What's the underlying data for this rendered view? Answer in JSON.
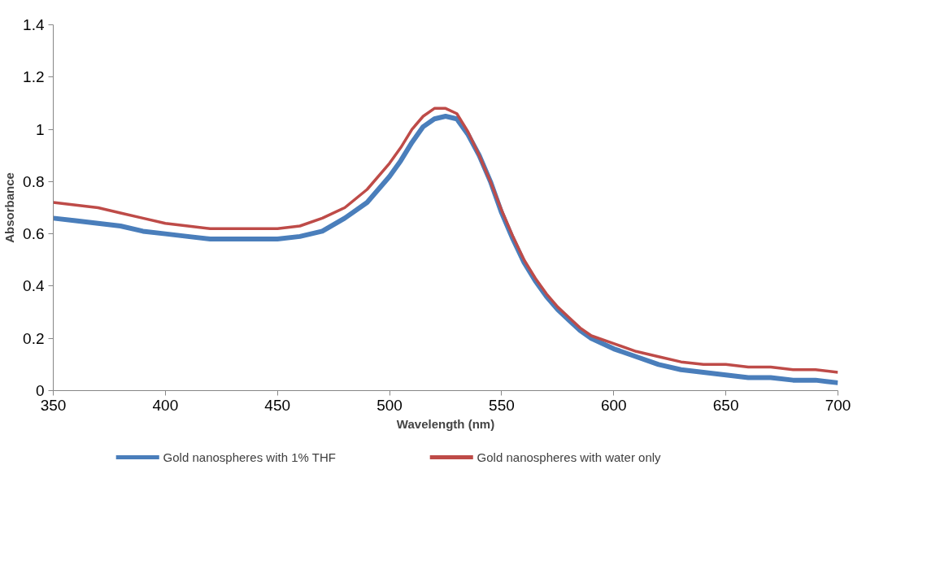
{
  "chart_data": {
    "type": "line",
    "xlabel": "Wavelength (nm)",
    "ylabel": "Absorbance",
    "xlim": [
      350,
      700
    ],
    "xticks": [
      350,
      400,
      450,
      500,
      550,
      600,
      650,
      700
    ],
    "ylim": [
      0,
      1.4
    ],
    "yticks": [
      0,
      {
        "value": 0.2,
        "label": "0.2"
      },
      {
        "value": 0.4,
        "label": "0.4"
      },
      {
        "value": 0.6,
        "label": "0.6"
      },
      {
        "value": 0.8,
        "label": "0.8"
      },
      1,
      {
        "value": 1.2,
        "label": "1.2"
      },
      {
        "value": 1.4,
        "label": "1.4"
      }
    ],
    "grid": false,
    "legend": "bottom",
    "marker": "none",
    "line_style": "solid",
    "x": [
      350,
      360,
      370,
      380,
      390,
      400,
      410,
      420,
      430,
      440,
      450,
      460,
      470,
      480,
      490,
      500,
      505,
      510,
      515,
      520,
      525,
      530,
      535,
      540,
      545,
      550,
      555,
      560,
      565,
      570,
      575,
      580,
      585,
      590,
      600,
      610,
      620,
      630,
      640,
      650,
      660,
      670,
      680,
      690,
      700
    ],
    "series": [
      {
        "name": "Gold nanospheres with 1% THF",
        "color": "#4a7ebb",
        "values": [
          0.66,
          0.65,
          0.64,
          0.63,
          0.61,
          0.6,
          0.59,
          0.58,
          0.58,
          0.58,
          0.58,
          0.59,
          0.61,
          0.66,
          0.72,
          0.82,
          0.88,
          0.95,
          1.01,
          1.04,
          1.05,
          1.04,
          0.98,
          0.9,
          0.8,
          0.68,
          0.58,
          0.49,
          0.42,
          0.36,
          0.31,
          0.27,
          0.23,
          0.2,
          0.16,
          0.13,
          0.1,
          0.08,
          0.07,
          0.06,
          0.05,
          0.05,
          0.04,
          0.04,
          0.03
        ]
      },
      {
        "name": "Gold nanospheres with water only",
        "color": "#be4b48",
        "values": [
          0.72,
          0.71,
          0.7,
          0.68,
          0.66,
          0.64,
          0.63,
          0.62,
          0.62,
          0.62,
          0.62,
          0.63,
          0.66,
          0.7,
          0.77,
          0.87,
          0.93,
          1.0,
          1.05,
          1.08,
          1.08,
          1.06,
          0.99,
          0.9,
          0.8,
          0.69,
          0.59,
          0.5,
          0.43,
          0.37,
          0.32,
          0.28,
          0.24,
          0.21,
          0.18,
          0.15,
          0.13,
          0.11,
          0.1,
          0.1,
          0.09,
          0.09,
          0.08,
          0.08,
          0.07
        ]
      }
    ]
  }
}
